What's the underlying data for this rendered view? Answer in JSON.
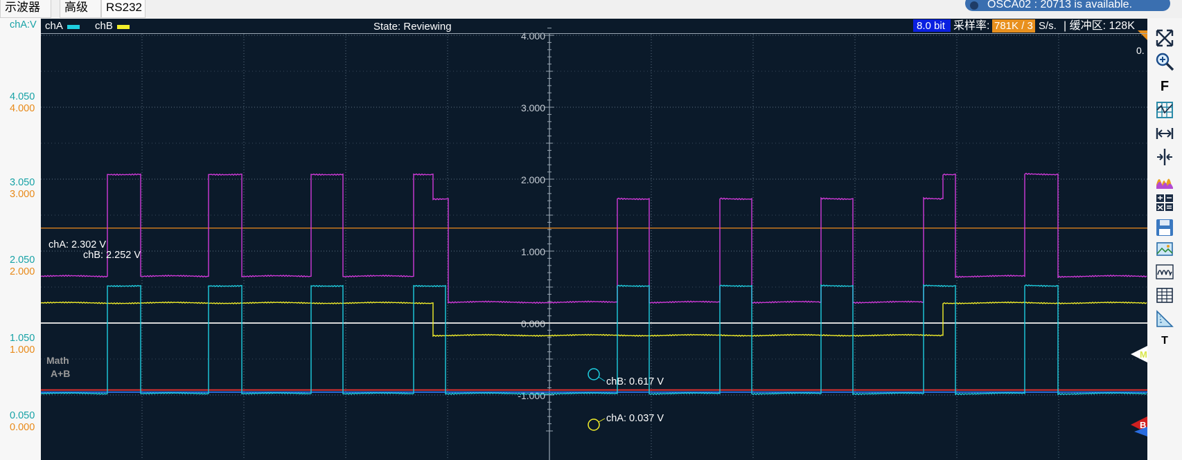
{
  "tabs": [
    {
      "label": "示波器"
    },
    {
      "label": "高级"
    },
    {
      "label": "RS232"
    }
  ],
  "update_notice": "OSCA02 : 20713 is available.",
  "left_axis": {
    "unit_label": "chA:V",
    "ticks": [
      {
        "teal": "4.050",
        "orange": "4.000"
      },
      {
        "teal": "3.050",
        "orange": "3.000"
      },
      {
        "teal": "2.050",
        "orange": "2.000"
      },
      {
        "teal": "1.050",
        "orange": "1.000"
      },
      {
        "teal": "0.050",
        "orange": "0.000"
      }
    ]
  },
  "header": {
    "cha_label": "chA",
    "chb_label": "chB",
    "state": "State: Reviewing",
    "bit_badge": "8.0 bit",
    "sample_rate_label": "采样率:",
    "sample_rate_value": "781K / 3",
    "sample_rate_unit": "S/s.",
    "buffer": "| 缓冲区: 128K",
    "corner_readout": "0."
  },
  "center_axis_ticks": [
    "4.000",
    "3.000",
    "2.000",
    "1.000",
    "0.000",
    "-1.000"
  ],
  "cursor_readouts": {
    "cha_trigger": "chA: 2.302 V",
    "chb_trigger": "chB: 2.252 V",
    "chb_marker": "chB: 0.617 V",
    "cha_marker": "chA: 0.037 V"
  },
  "math_label": "Math",
  "math_expr": "A+B",
  "markers": {
    "math_marker": "M",
    "b_marker": "B",
    "t_button": "T",
    "f_button": "F"
  },
  "colors": {
    "background": "#0b1a2a",
    "chA": "#1ecfe0",
    "chB": "#f3ef2a",
    "math": "#d03ad8",
    "trigger": "#f08a1a",
    "zero_line": "#d9d9d9",
    "red_line": "#e03030",
    "blue_line": "#2a6de0"
  },
  "chart_data": {
    "type": "line",
    "title": "",
    "xlabel": "",
    "ylabel": "",
    "ylim": [
      -1.3,
      4.2
    ],
    "series": [
      {
        "name": "chA",
        "levels": {
          "high": 0.52,
          "low": -0.98
        }
      },
      {
        "name": "chB",
        "levels": {
          "high": 0.28,
          "low": -0.17
        }
      },
      {
        "name": "Math A+B",
        "levels": {
          "high_a": 2.07,
          "high_b": 1.73,
          "mid": 0.65,
          "low": 0.29
        }
      }
    ]
  }
}
